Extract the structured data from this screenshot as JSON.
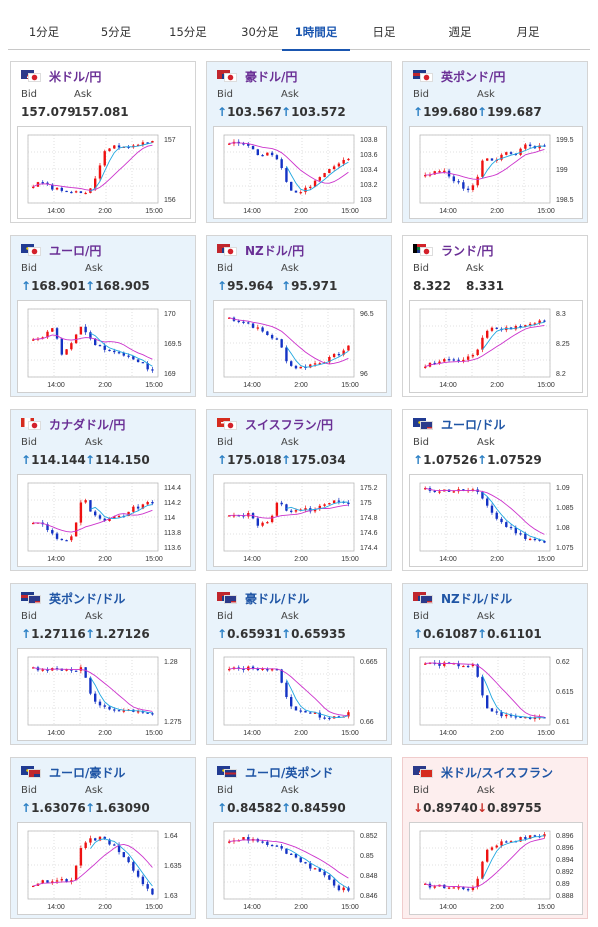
{
  "tabs": [
    {
      "label": "1分足",
      "active": false
    },
    {
      "label": "5分足",
      "active": false
    },
    {
      "label": "15分足",
      "active": false
    },
    {
      "label": "30分足",
      "active": false
    },
    {
      "label": "1時間足",
      "active": true
    },
    {
      "label": "日足",
      "active": false
    },
    {
      "label": "週足",
      "active": false
    },
    {
      "label": "月足",
      "active": false
    }
  ],
  "labels": {
    "bid": "Bid",
    "ask": "Ask"
  },
  "x_ticks": [
    "14:00",
    "2:00",
    "15:00"
  ],
  "colors": {
    "up_arrow": "#2a7fc4",
    "down_arrow": "#c8302a",
    "candle_up": "#ee1111",
    "candle_down": "#1433c4",
    "ma_short": "#22a8e0",
    "ma_long": "#cc33cc"
  },
  "cards": [
    {
      "name": "米ドル/円",
      "flags": [
        "us",
        "jp"
      ],
      "bid": "157.079",
      "ask": "157.081",
      "direction": "none",
      "bg": "white",
      "name_color": "purple",
      "chart_data": {
        "type": "candlestick",
        "y_ticks": [
          "157",
          "156"
        ],
        "ylim": [
          155.4,
          157.35
        ],
        "path": [
          155.9,
          156.0,
          155.8,
          155.75,
          155.7,
          155.65,
          155.85,
          156.8,
          157.0,
          157.05,
          157.0,
          157.1,
          157.2
        ]
      }
    },
    {
      "name": "豪ドル/円",
      "flags": [
        "au",
        "jp"
      ],
      "bid": "103.567",
      "ask": "103.572",
      "direction": "up",
      "bg": "blue",
      "name_color": "purple",
      "chart_data": {
        "type": "candlestick",
        "y_ticks": [
          "103.8",
          "103.6",
          "103.4",
          "103.2",
          "103"
        ],
        "ylim": [
          102.95,
          103.95
        ],
        "path": [
          103.85,
          103.82,
          103.8,
          103.65,
          103.7,
          103.55,
          103.15,
          103.1,
          103.2,
          103.3,
          103.45,
          103.55,
          103.6
        ]
      }
    },
    {
      "name": "英ポンド/円",
      "flags": [
        "uk",
        "jp"
      ],
      "bid": "199.680",
      "ask": "199.687",
      "direction": "up",
      "bg": "blue",
      "name_color": "purple",
      "chart_data": {
        "type": "candlestick",
        "y_ticks": [
          "199.5",
          "199",
          "198.5"
        ],
        "ylim": [
          198.4,
          199.95
        ],
        "path": [
          199.0,
          199.1,
          199.15,
          198.9,
          198.7,
          198.8,
          199.5,
          199.3,
          199.6,
          199.5,
          199.7,
          199.65,
          199.7
        ]
      }
    },
    {
      "name": "ユーロ/円",
      "flags": [
        "eu",
        "jp"
      ],
      "bid": "168.901",
      "ask": "168.905",
      "direction": "up",
      "bg": "blue",
      "name_color": "purple",
      "chart_data": {
        "type": "candlestick",
        "y_ticks": [
          "170",
          "169.5",
          "169"
        ],
        "ylim": [
          168.8,
          170.1
        ],
        "path": [
          169.5,
          169.6,
          169.75,
          169.2,
          169.5,
          169.8,
          169.4,
          169.35,
          169.3,
          169.2,
          169.15,
          169.05,
          168.9
        ]
      }
    },
    {
      "name": "NZドル/円",
      "flags": [
        "nz",
        "jp"
      ],
      "bid": "95.964",
      "ask": "95.971",
      "direction": "up",
      "bg": "blue",
      "name_color": "purple",
      "chart_data": {
        "type": "candlestick",
        "y_ticks": [
          "96.5",
          "96"
        ],
        "ylim": [
          95.5,
          96.65
        ],
        "path": [
          96.5,
          96.45,
          96.4,
          96.3,
          96.2,
          96.1,
          95.7,
          95.65,
          95.7,
          95.75,
          95.8,
          95.9,
          96.0
        ]
      }
    },
    {
      "name": "ランド/円",
      "flags": [
        "za",
        "jp"
      ],
      "bid": "8.322",
      "ask": "8.331",
      "direction": "none",
      "bg": "white",
      "name_color": "purple",
      "chart_data": {
        "type": "candlestick",
        "y_ticks": [
          "8.3",
          "8.25",
          "8.2"
        ],
        "ylim": [
          8.17,
          8.36
        ],
        "path": [
          8.2,
          8.21,
          8.22,
          8.215,
          8.22,
          8.23,
          8.3,
          8.31,
          8.305,
          8.31,
          8.315,
          8.32,
          8.33
        ]
      }
    },
    {
      "name": "カナダドル/円",
      "flags": [
        "ca",
        "jp"
      ],
      "bid": "114.144",
      "ask": "114.150",
      "direction": "up",
      "bg": "blue",
      "name_color": "purple",
      "chart_data": {
        "type": "candlestick",
        "y_ticks": [
          "114.4",
          "114.2",
          "114",
          "113.8",
          "113.6"
        ],
        "ylim": [
          113.45,
          114.5
        ],
        "path": [
          113.9,
          113.85,
          113.7,
          113.6,
          113.7,
          114.3,
          114.0,
          113.9,
          113.95,
          114.0,
          114.1,
          114.15,
          114.2
        ]
      }
    },
    {
      "name": "スイスフラン/円",
      "flags": [
        "ch",
        "jp"
      ],
      "bid": "175.018",
      "ask": "175.034",
      "direction": "up",
      "bg": "blue",
      "name_color": "purple",
      "chart_data": {
        "type": "candlestick",
        "y_ticks": [
          "175.2",
          "175",
          "174.8",
          "174.6",
          "174.4"
        ],
        "ylim": [
          174.35,
          175.35
        ],
        "path": [
          174.9,
          174.85,
          174.9,
          174.7,
          174.8,
          175.1,
          174.9,
          175.0,
          174.95,
          175.0,
          175.05,
          175.1,
          175.05
        ]
      }
    },
    {
      "name": "ユーロ/ドル",
      "flags": [
        "eu",
        "us"
      ],
      "bid": "1.07526",
      "ask": "1.07529",
      "direction": "up",
      "bg": "white",
      "name_color": "blue",
      "chart_data": {
        "type": "candlestick",
        "y_ticks": [
          "1.09",
          "1.085",
          "1.08",
          "1.075"
        ],
        "ylim": [
          1.0735,
          1.0905
        ],
        "path": [
          1.0888,
          1.0887,
          1.0886,
          1.0886,
          1.0887,
          1.0885,
          1.086,
          1.082,
          1.08,
          1.0785,
          1.077,
          1.0765,
          1.0755
        ]
      }
    },
    {
      "name": "英ポンド/ドル",
      "flags": [
        "uk",
        "us"
      ],
      "bid": "1.27116",
      "ask": "1.27126",
      "direction": "up",
      "bg": "blue",
      "name_color": "blue",
      "chart_data": {
        "type": "candlestick",
        "y_ticks": [
          "1.28",
          "1.275"
        ],
        "ylim": [
          1.2695,
          1.2815
        ],
        "path": [
          1.2795,
          1.2794,
          1.2793,
          1.2793,
          1.2792,
          1.2795,
          1.2735,
          1.2725,
          1.2722,
          1.272,
          1.2718,
          1.2715,
          1.2712
        ]
      }
    },
    {
      "name": "豪ドル/ドル",
      "flags": [
        "au",
        "us"
      ],
      "bid": "0.65931",
      "ask": "0.65935",
      "direction": "up",
      "bg": "blue",
      "name_color": "blue",
      "chart_data": {
        "type": "candlestick",
        "y_ticks": [
          "0.665",
          "0.66"
        ],
        "ylim": [
          0.6575,
          0.6685
        ],
        "path": [
          0.6665,
          0.6666,
          0.6667,
          0.6668,
          0.6664,
          0.6662,
          0.6605,
          0.66,
          0.6595,
          0.659,
          0.6588,
          0.659,
          0.6593
        ]
      }
    },
    {
      "name": "NZドル/ドル",
      "flags": [
        "nz",
        "us"
      ],
      "bid": "0.61087",
      "ask": "0.61101",
      "direction": "up",
      "bg": "blue",
      "name_color": "blue",
      "chart_data": {
        "type": "candlestick",
        "y_ticks": [
          "0.62",
          "0.615",
          "0.61"
        ],
        "ylim": [
          0.6095,
          0.6205
        ],
        "path": [
          0.6195,
          0.6194,
          0.6193,
          0.6192,
          0.6192,
          0.619,
          0.6125,
          0.6115,
          0.611,
          0.6108,
          0.6107,
          0.6108,
          0.6109
        ]
      }
    },
    {
      "name": "ユーロ/豪ドル",
      "flags": [
        "eu",
        "au"
      ],
      "bid": "1.63076",
      "ask": "1.63090",
      "direction": "up",
      "bg": "blue",
      "name_color": "blue",
      "chart_data": {
        "type": "candlestick",
        "y_ticks": [
          "1.64",
          "1.635",
          "1.63"
        ],
        "ylim": [
          1.6295,
          1.6415
        ],
        "path": [
          1.632,
          1.6325,
          1.633,
          1.6328,
          1.633,
          1.6395,
          1.64,
          1.6405,
          1.639,
          1.6375,
          1.635,
          1.632,
          1.6305
        ]
      }
    },
    {
      "name": "ユーロ/英ポンド",
      "flags": [
        "eu",
        "uk"
      ],
      "bid": "0.84582",
      "ask": "0.84590",
      "direction": "up",
      "bg": "blue",
      "name_color": "blue",
      "chart_data": {
        "type": "candlestick",
        "y_ticks": [
          "0.852",
          "0.85",
          "0.848",
          "0.846"
        ],
        "ylim": [
          0.8448,
          0.8525
        ],
        "path": [
          0.8515,
          0.8516,
          0.8516,
          0.8512,
          0.851,
          0.8505,
          0.85,
          0.849,
          0.8485,
          0.848,
          0.847,
          0.846,
          0.8458
        ]
      }
    },
    {
      "name": "米ドル/スイスフラン",
      "flags": [
        "us",
        "ch"
      ],
      "bid": "0.89740",
      "ask": "0.89755",
      "direction": "down",
      "bg": "pink",
      "name_color": "blue",
      "chart_data": {
        "type": "candlestick",
        "y_ticks": [
          "0.896",
          "0.896",
          "0.894",
          "0.892",
          "0.89",
          "0.888"
        ],
        "ylim": [
          0.8875,
          0.8975
        ],
        "path": [
          0.8895,
          0.8894,
          0.8893,
          0.8892,
          0.8891,
          0.889,
          0.8945,
          0.8955,
          0.896,
          0.8962,
          0.8965,
          0.8968,
          0.897
        ]
      }
    }
  ]
}
